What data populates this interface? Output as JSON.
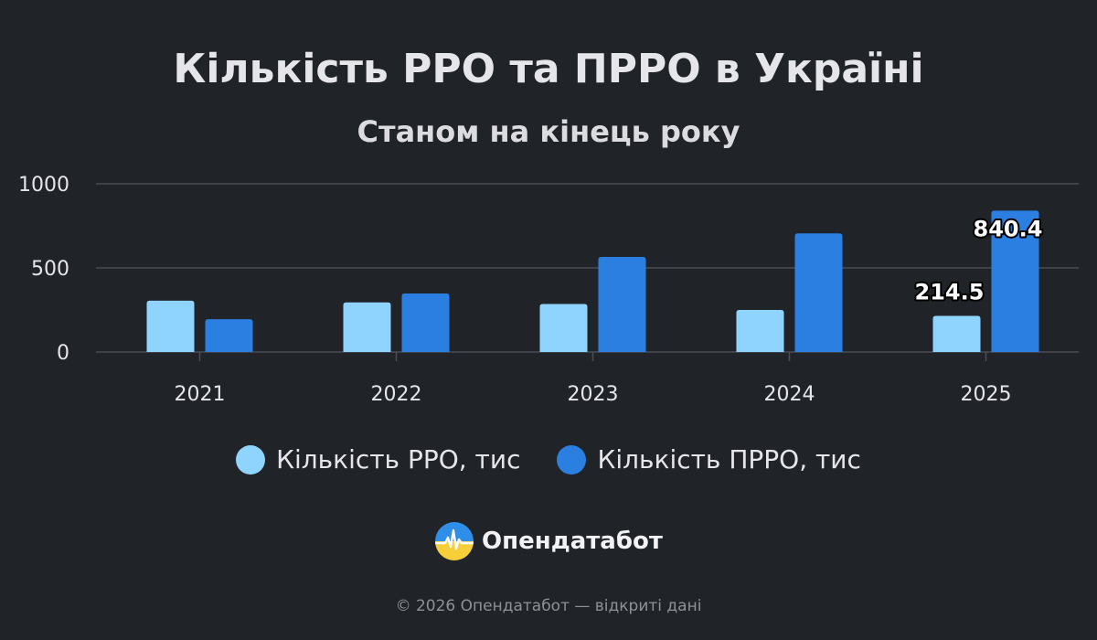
{
  "header": {
    "title": "Кількість РРО та ПРРО в Україні",
    "subtitle": "Станом на кінець року"
  },
  "chart_data": {
    "type": "bar",
    "title": "Кількість РРО та ПРРО в Україні",
    "subtitle": "Станом на кінець року",
    "categories": [
      "2021",
      "2022",
      "2023",
      "2024",
      "2025"
    ],
    "series": [
      {
        "name": "Кількість РРО, тис",
        "color": "#8fd4ff",
        "values": [
          305,
          295,
          285,
          250,
          214.5
        ]
      },
      {
        "name": "Кількість ПРРО, тис",
        "color": "#2b7fe0",
        "values": [
          195,
          348,
          565,
          705,
          840.4
        ]
      }
    ],
    "data_labels": [
      {
        "series": 0,
        "index": 4,
        "text": "214.5"
      },
      {
        "series": 1,
        "index": 4,
        "text": "840.4"
      }
    ],
    "y_ticks": [
      "0",
      "500",
      "1000"
    ],
    "ylim": [
      0,
      1000
    ],
    "xlabel": "",
    "ylabel": "",
    "grid": true,
    "legend_position": "bottom"
  },
  "brand": {
    "name": "Опендатабот"
  },
  "footer": {
    "text": "© 2026 Опендатабот — відкриті дані"
  }
}
